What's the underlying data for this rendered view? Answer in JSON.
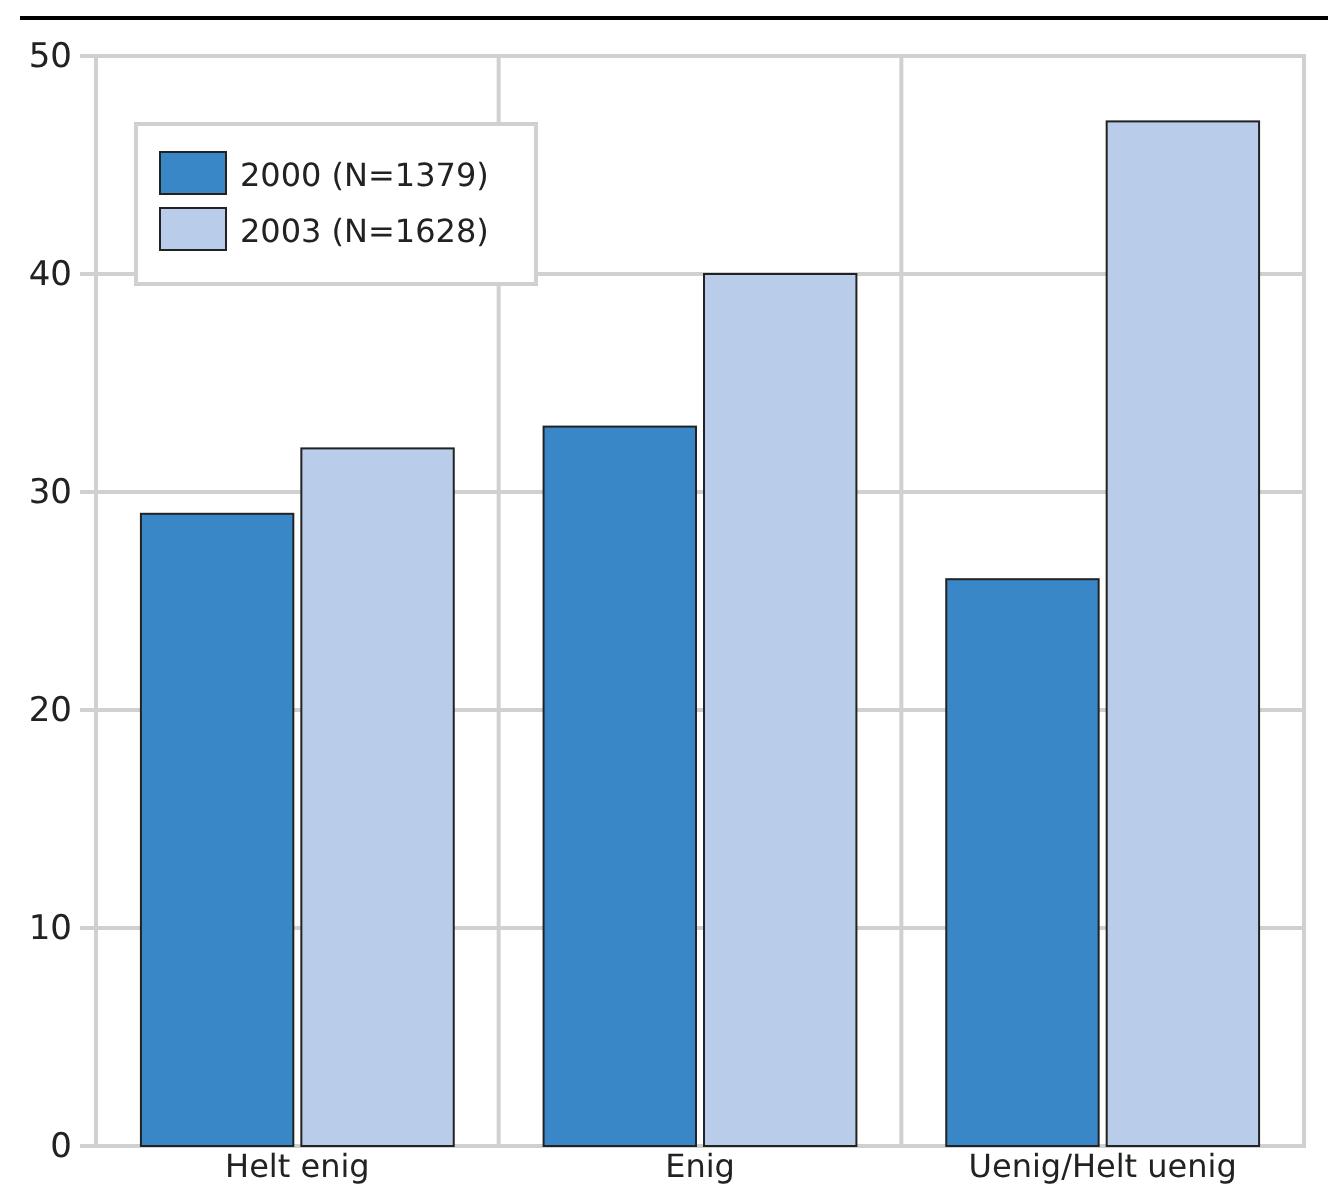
{
  "chart_data": {
    "type": "bar",
    "categories": [
      "Helt enig",
      "Enig",
      "Uenig/Helt uenig"
    ],
    "series": [
      {
        "name": "2000 (N=1379)",
        "color": "#3a87c7",
        "values": [
          29,
          33,
          26
        ]
      },
      {
        "name": "2003 (N=1628)",
        "color": "#b9cdeb",
        "values": [
          32,
          40,
          47
        ]
      }
    ],
    "ylim": [
      0,
      50
    ],
    "yticks": [
      0,
      10,
      20,
      30,
      40,
      50
    ],
    "grid": true,
    "legend": "top left"
  }
}
